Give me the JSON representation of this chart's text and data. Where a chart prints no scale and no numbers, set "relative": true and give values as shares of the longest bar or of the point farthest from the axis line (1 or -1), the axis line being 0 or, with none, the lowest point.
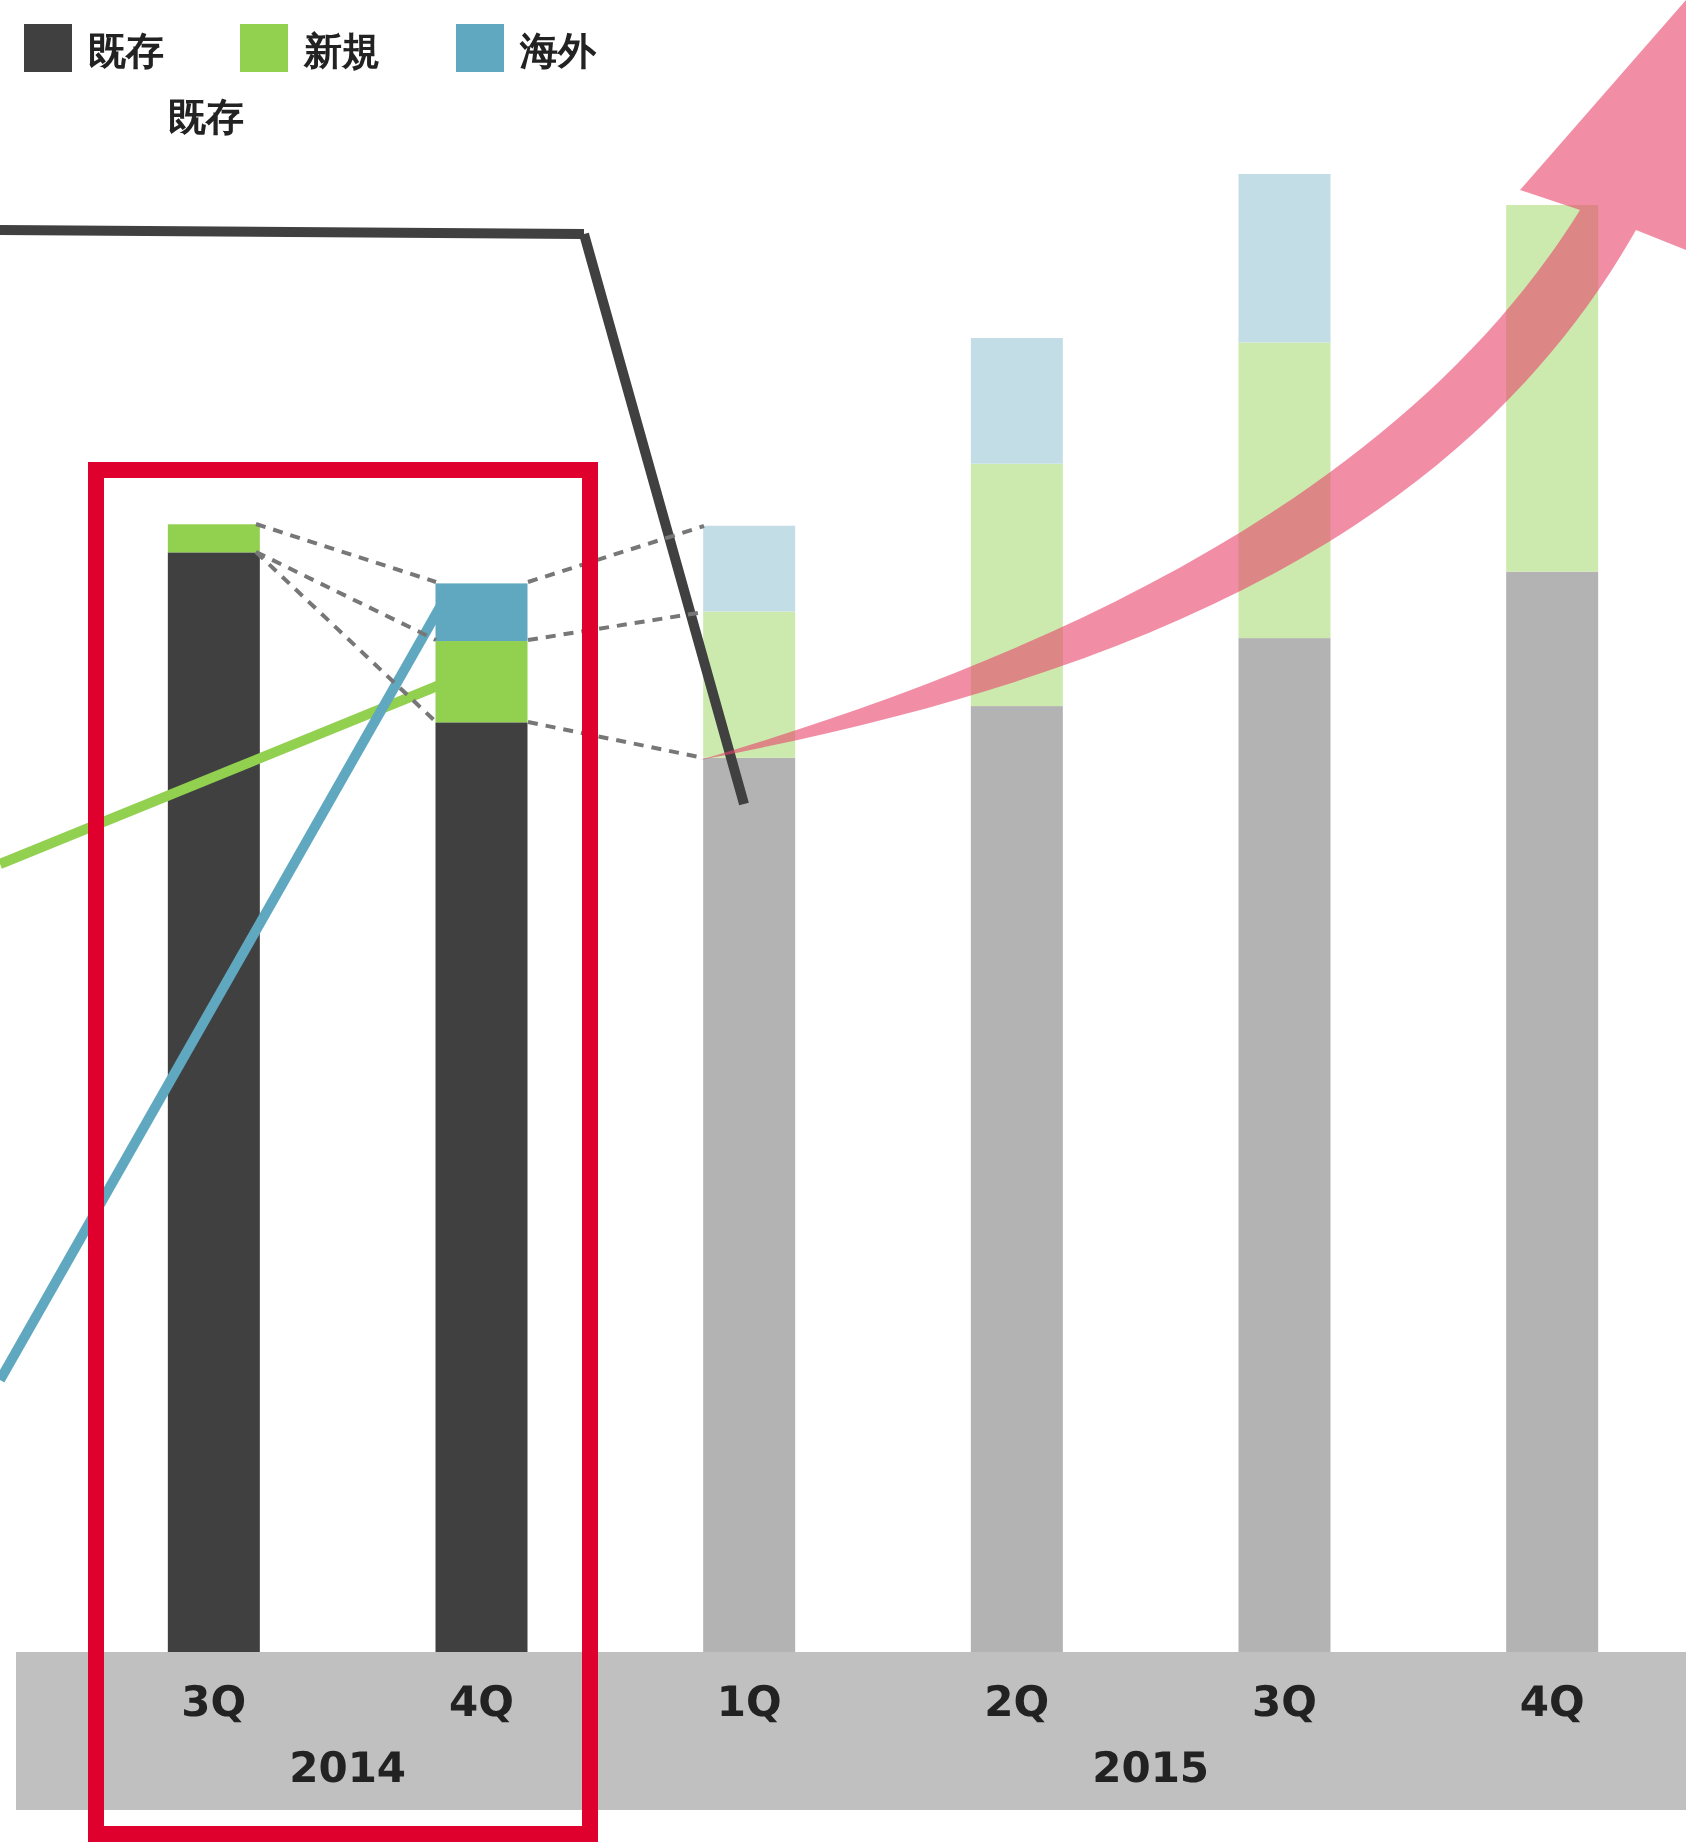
{
  "chart_data": {
    "type": "bar",
    "stacked": true,
    "relative": true,
    "legend": "top left",
    "categories": [
      "3Q",
      "4Q",
      "1Q",
      "2Q",
      "3Q",
      "4Q"
    ],
    "series": [
      {
        "name": "既存",
        "colors": [
          "#404040",
          "#404040",
          "#b3b3b3",
          "#b3b3b3",
          "#b3b3b3",
          "#b3b3b3"
        ],
        "values": [
          0.744,
          0.629,
          0.605,
          0.64,
          0.686,
          0.731
        ]
      },
      {
        "name": "新規",
        "colors": [
          "#92d050",
          "#92d050",
          "#cdeaae",
          "#cdeaae",
          "#cdeaae",
          "#cdeaae"
        ],
        "values": [
          0.019,
          0.055,
          0.099,
          0.164,
          0.2,
          0.248
        ]
      },
      {
        "name": "海外",
        "colors": [
          "#5fa8bf",
          "#5fa8bf",
          "#c2dde6",
          "#c2dde6",
          "#c2dde6",
          "#c2dde6"
        ],
        "values": [
          0,
          0.039,
          0.058,
          0.085,
          0.114,
          null
        ]
      }
    ],
    "annotations": [
      "2014",
      "2015",
      "既存"
    ]
  }
}
